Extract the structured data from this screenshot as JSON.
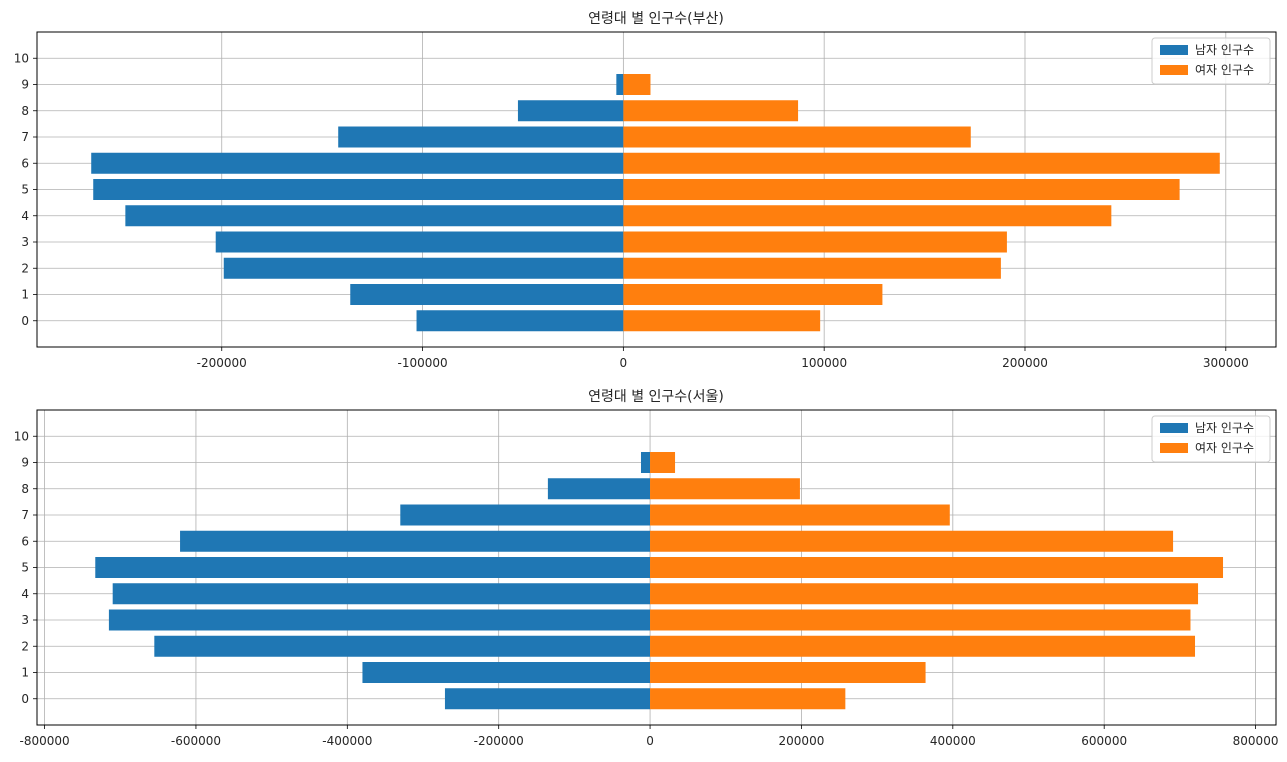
{
  "colors": {
    "male": "#1f77b4",
    "female": "#ff7f0e",
    "grid": "#b0b0b0",
    "axis": "#000000"
  },
  "chart_data": [
    {
      "type": "bar",
      "orientation": "horizontal",
      "title": "연령대 별 인구수(부산)",
      "categories": [
        "0",
        "1",
        "2",
        "3",
        "4",
        "5",
        "6",
        "7",
        "8",
        "9",
        "10"
      ],
      "series": [
        {
          "name": "남자 인구수",
          "values": [
            -103000,
            -136000,
            -199000,
            -203000,
            -248000,
            -264000,
            -265000,
            -142000,
            -52500,
            -3500,
            0
          ]
        },
        {
          "name": "여자 인구수",
          "values": [
            98000,
            129000,
            188000,
            191000,
            243000,
            277000,
            297000,
            173000,
            87000,
            13500,
            0
          ]
        }
      ],
      "x_ticks": [
        -200000,
        -100000,
        0,
        100000,
        200000,
        300000
      ],
      "x_tick_labels": [
        "-200000",
        "-100000",
        "0",
        "100000",
        "200000",
        "300000"
      ],
      "xlim": [
        -292000,
        325000
      ],
      "ylim": [
        -1,
        11
      ],
      "grid": true,
      "legend": "upper right"
    },
    {
      "type": "bar",
      "orientation": "horizontal",
      "title": "연령대 별 인구수(서울)",
      "categories": [
        "0",
        "1",
        "2",
        "3",
        "4",
        "5",
        "6",
        "7",
        "8",
        "9",
        "10"
      ],
      "series": [
        {
          "name": "남자 인구수",
          "values": [
            -271000,
            -380000,
            -655000,
            -715000,
            -710000,
            -733000,
            -621000,
            -330000,
            -135000,
            -12000,
            0
          ]
        },
        {
          "name": "여자 인구수",
          "values": [
            258000,
            364000,
            720000,
            714000,
            724000,
            757000,
            691000,
            396000,
            198000,
            33000,
            0
          ]
        }
      ],
      "x_ticks": [
        -800000,
        -600000,
        -400000,
        -200000,
        0,
        200000,
        400000,
        600000,
        800000
      ],
      "x_tick_labels": [
        "-800000",
        "-600000",
        "-400000",
        "-200000",
        "0",
        "200000",
        "400000",
        "600000",
        "800000"
      ],
      "xlim": [
        -810000,
        827000
      ],
      "ylim": [
        -1,
        11
      ],
      "grid": true,
      "legend": "upper right"
    }
  ]
}
